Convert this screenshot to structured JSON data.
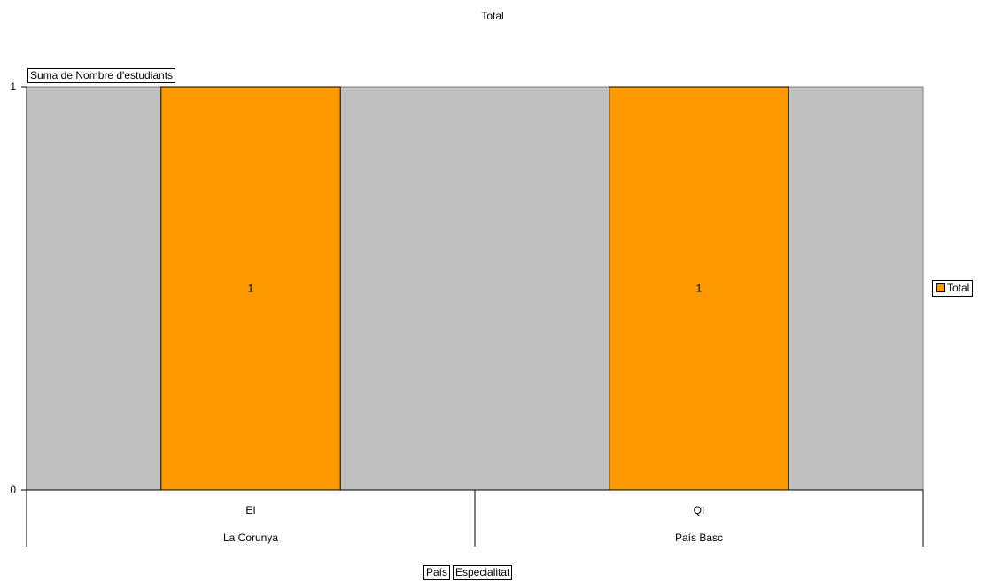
{
  "chart_data": {
    "type": "bar",
    "title": "Total",
    "data_field": "Suma de Nombre d'estudiants",
    "row_fields": [
      "País",
      "Especialitat"
    ],
    "categories": [
      {
        "specialitat": "EI",
        "pais": "La Corunya"
      },
      {
        "specialitat": "QI",
        "pais": "País Basc"
      }
    ],
    "series": [
      {
        "name": "Total",
        "values": [
          1,
          1
        ],
        "color": "#ff9900"
      }
    ],
    "data_labels": [
      "1",
      "1"
    ],
    "ylim": [
      0,
      1
    ],
    "yticks": [
      "0",
      "1"
    ],
    "plot_background": "#c0c0c0",
    "grid": false,
    "legend": "right"
  }
}
